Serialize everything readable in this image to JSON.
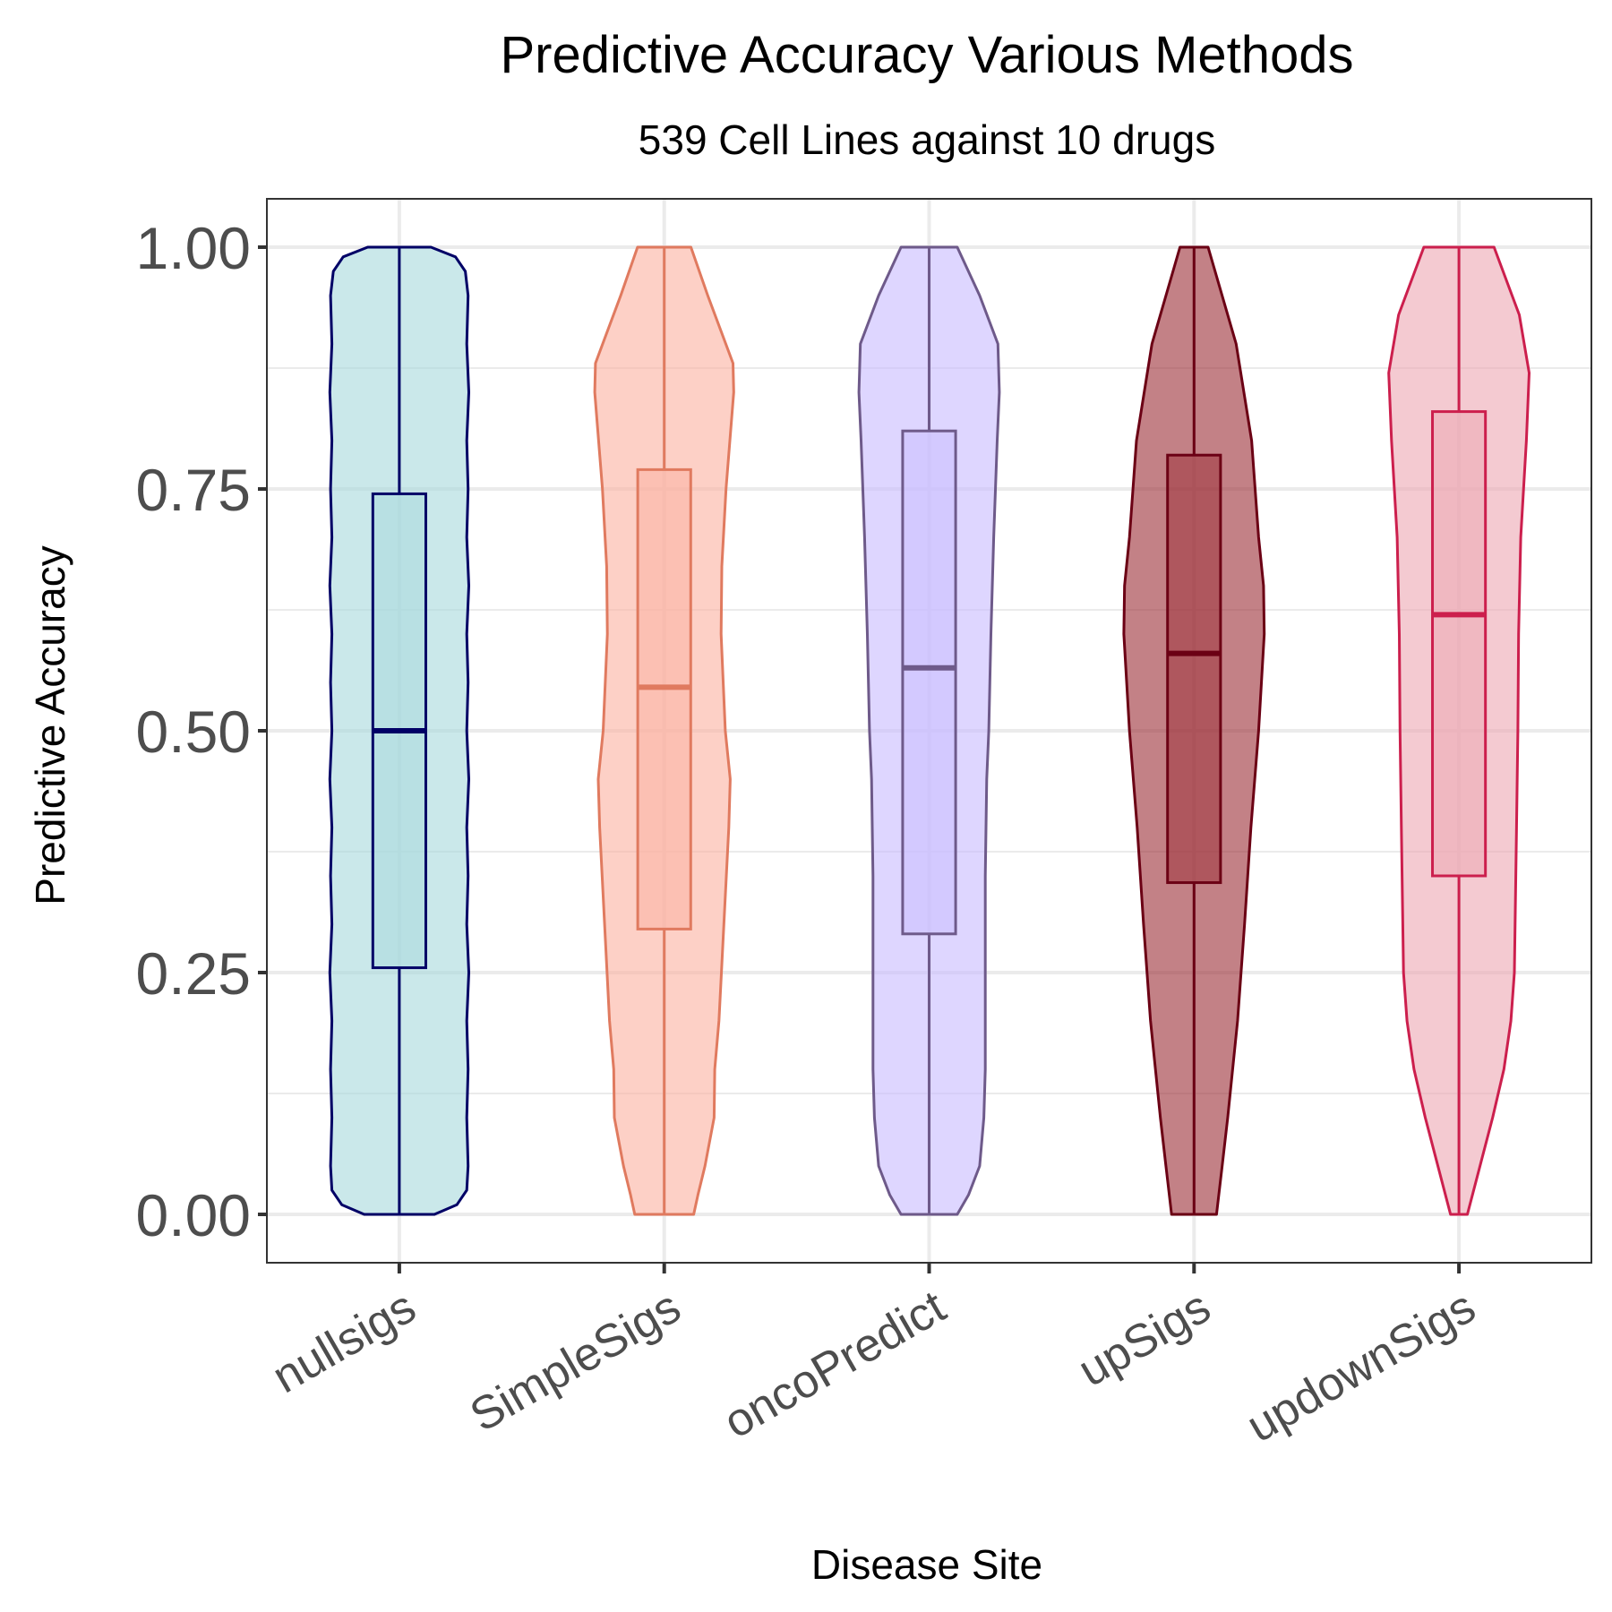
{
  "chart_data": {
    "type": "violin",
    "title": "Predictive Accuracy Various Methods",
    "subtitle": "539 Cell Lines against 10 drugs",
    "xlabel": "Disease Site",
    "ylabel": "Predictive Accuracy",
    "ylim": [
      -0.05,
      1.05
    ],
    "y_ticks": [
      "0.00",
      "0.25",
      "0.50",
      "0.75",
      "1.00"
    ],
    "y_tick_values": [
      0,
      0.25,
      0.5,
      0.75,
      1.0
    ],
    "grid": true,
    "categories": [
      "nullsigs",
      "SimpleSigs",
      "oncoPredict",
      "upSigs",
      "updownSigs"
    ],
    "series": [
      {
        "category": "nullsigs",
        "color": "#000066",
        "fill": "#a6d8dc",
        "box": {
          "q1": 0.255,
          "median": 0.5,
          "q3": 0.745,
          "min": 0.0,
          "max": 1.0
        },
        "density": [
          [
            0.0,
            0.5
          ],
          [
            0.01,
            0.82
          ],
          [
            0.025,
            0.96
          ],
          [
            0.05,
            0.98
          ],
          [
            0.1,
            0.96
          ],
          [
            0.15,
            0.98
          ],
          [
            0.2,
            0.96
          ],
          [
            0.25,
            0.99
          ],
          [
            0.3,
            0.96
          ],
          [
            0.35,
            0.98
          ],
          [
            0.4,
            0.96
          ],
          [
            0.45,
            0.99
          ],
          [
            0.5,
            0.96
          ],
          [
            0.55,
            0.98
          ],
          [
            0.6,
            0.96
          ],
          [
            0.65,
            0.99
          ],
          [
            0.7,
            0.96
          ],
          [
            0.75,
            0.98
          ],
          [
            0.8,
            0.96
          ],
          [
            0.85,
            0.99
          ],
          [
            0.9,
            0.96
          ],
          [
            0.95,
            0.98
          ],
          [
            0.975,
            0.94
          ],
          [
            0.99,
            0.8
          ],
          [
            1.0,
            0.45
          ]
        ]
      },
      {
        "category": "SimpleSigs",
        "color": "#e07a5f",
        "fill": "#fbb0a0",
        "box": {
          "q1": 0.295,
          "median": 0.545,
          "q3": 0.77,
          "min": 0.0,
          "max": 1.0
        },
        "density": [
          [
            0.0,
            0.42
          ],
          [
            0.02,
            0.48
          ],
          [
            0.05,
            0.58
          ],
          [
            0.1,
            0.71
          ],
          [
            0.15,
            0.72
          ],
          [
            0.2,
            0.78
          ],
          [
            0.3,
            0.85
          ],
          [
            0.4,
            0.92
          ],
          [
            0.45,
            0.94
          ],
          [
            0.5,
            0.87
          ],
          [
            0.6,
            0.81
          ],
          [
            0.67,
            0.82
          ],
          [
            0.75,
            0.88
          ],
          [
            0.85,
            0.99
          ],
          [
            0.88,
            0.98
          ],
          [
            0.95,
            0.62
          ],
          [
            1.0,
            0.38
          ]
        ]
      },
      {
        "category": "oncoPredict",
        "color": "#6e5a8a",
        "fill": "#c8bbff",
        "box": {
          "q1": 0.29,
          "median": 0.565,
          "q3": 0.81,
          "min": 0.0,
          "max": 1.0
        },
        "density": [
          [
            0.0,
            0.4
          ],
          [
            0.02,
            0.56
          ],
          [
            0.05,
            0.72
          ],
          [
            0.1,
            0.78
          ],
          [
            0.15,
            0.8
          ],
          [
            0.25,
            0.8
          ],
          [
            0.35,
            0.8
          ],
          [
            0.45,
            0.82
          ],
          [
            0.5,
            0.85
          ],
          [
            0.6,
            0.88
          ],
          [
            0.7,
            0.92
          ],
          [
            0.8,
            0.97
          ],
          [
            0.85,
            1.0
          ],
          [
            0.9,
            0.98
          ],
          [
            0.95,
            0.72
          ],
          [
            1.0,
            0.4
          ]
        ]
      },
      {
        "category": "upSigs",
        "color": "#6b0014",
        "fill": "#9b2d35",
        "box": {
          "q1": 0.343,
          "median": 0.58,
          "q3": 0.785,
          "min": 0.0,
          "max": 1.0
        },
        "density": [
          [
            0.0,
            0.32
          ],
          [
            0.05,
            0.4
          ],
          [
            0.1,
            0.48
          ],
          [
            0.2,
            0.62
          ],
          [
            0.3,
            0.72
          ],
          [
            0.4,
            0.81
          ],
          [
            0.5,
            0.92
          ],
          [
            0.6,
            1.0
          ],
          [
            0.65,
            0.99
          ],
          [
            0.7,
            0.92
          ],
          [
            0.8,
            0.82
          ],
          [
            0.9,
            0.6
          ],
          [
            1.0,
            0.2
          ]
        ]
      },
      {
        "category": "updownSigs",
        "color": "#cc1f4d",
        "fill": "#eca6b2",
        "box": {
          "q1": 0.35,
          "median": 0.62,
          "q3": 0.83,
          "min": 0.0,
          "max": 1.0
        },
        "density": [
          [
            0.0,
            0.12
          ],
          [
            0.05,
            0.3
          ],
          [
            0.1,
            0.48
          ],
          [
            0.15,
            0.64
          ],
          [
            0.2,
            0.74
          ],
          [
            0.25,
            0.79
          ],
          [
            0.3,
            0.8
          ],
          [
            0.4,
            0.82
          ],
          [
            0.5,
            0.84
          ],
          [
            0.6,
            0.85
          ],
          [
            0.7,
            0.88
          ],
          [
            0.8,
            0.96
          ],
          [
            0.87,
            1.0
          ],
          [
            0.93,
            0.86
          ],
          [
            1.0,
            0.5
          ]
        ]
      }
    ]
  }
}
